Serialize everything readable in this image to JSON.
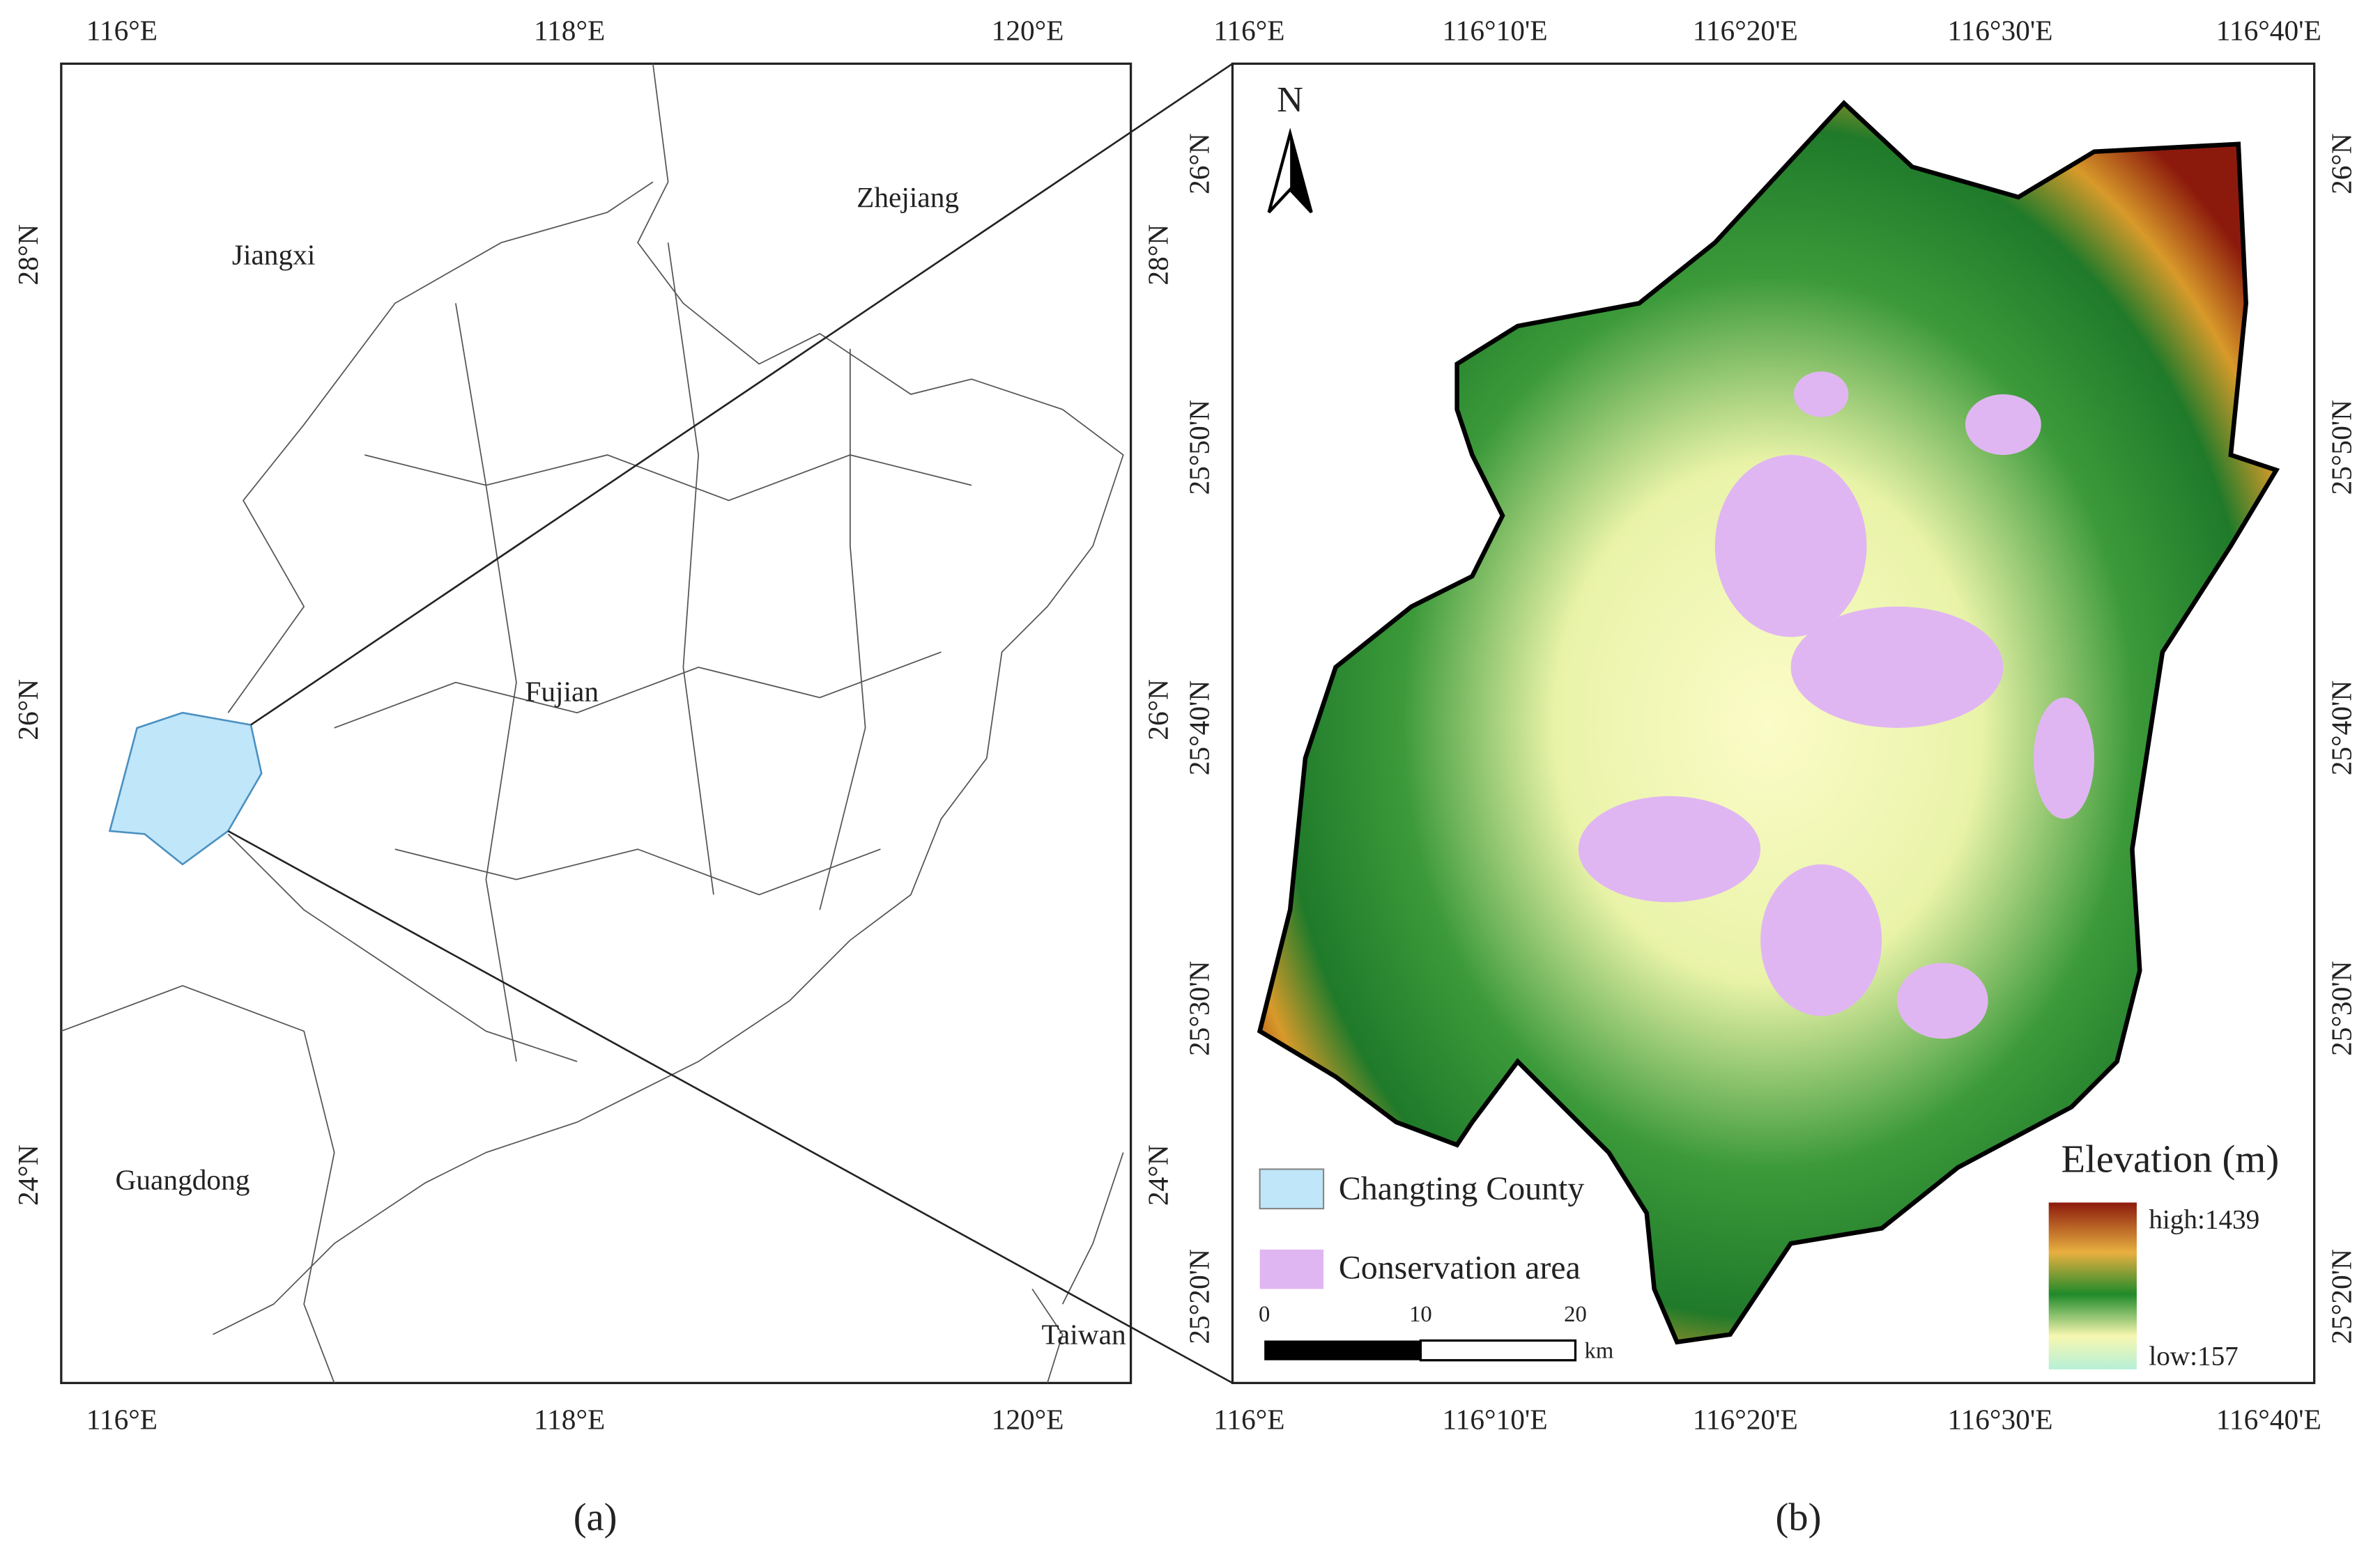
{
  "panel_a": {
    "caption": "(a)",
    "lon_labels": [
      "116°E",
      "118°E",
      "120°E"
    ],
    "lat_labels": [
      "28°N",
      "26°N",
      "24°N"
    ],
    "places": [
      "Jiangxi",
      "Zhejiang",
      "Fujian",
      "Guangdong",
      "Taiwan"
    ]
  },
  "panel_b": {
    "caption": "(b)",
    "lon_labels": [
      "116°E",
      "116°10'E",
      "116°20'E",
      "116°30'E",
      "116°40'E"
    ],
    "lat_labels": [
      "26°N",
      "25°50'N",
      "25°40'N",
      "25°30'N",
      "25°20'N"
    ],
    "north": "N",
    "legend": [
      "Changting County",
      "Conservation area"
    ],
    "scale_bar": {
      "ticks": [
        "0",
        "10",
        "20"
      ],
      "unit": "km"
    },
    "elevation_legend": {
      "title": "Elevation (m)",
      "high": "high:1439",
      "low": "low:157"
    }
  }
}
